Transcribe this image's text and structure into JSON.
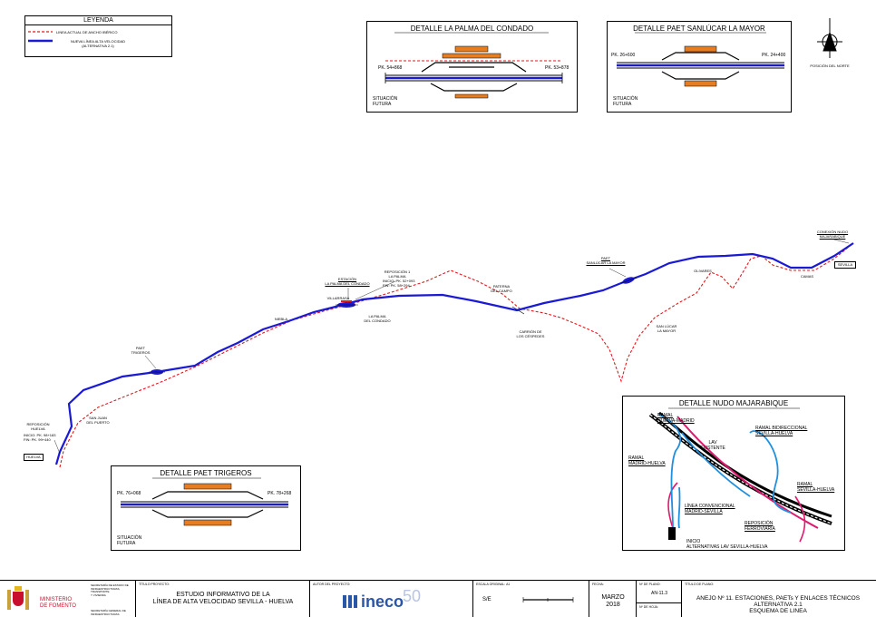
{
  "legend": {
    "title": "LEYENDA",
    "items": [
      {
        "label": "LINEA ACTUAL DE ANCHO IBÉRICO",
        "color": "#e0191e",
        "style": "dashed"
      },
      {
        "label": "NUEVA LÍNEA ALTA VELOCIDAD\n(ALTERNATIVA 2.1)",
        "color": "#1a1ad6",
        "style": "solid"
      }
    ]
  },
  "detail_palma": {
    "title": "DETALLE LA PALMA DEL CONDADO",
    "pk_left": "PK. 54+868",
    "pk_right": "PK. 53+878",
    "situation": "SITUACIÓN\nFUTURA"
  },
  "detail_sanlucar": {
    "title": "DETALLE PAET SANLÚCAR LA MAYOR",
    "pk_left": "PK. 26+600",
    "pk_right": "PK. 24+400",
    "situation": "SITUACIÓN\nFUTURA"
  },
  "north": {
    "label": "POSICIÓN DEL NORTE"
  },
  "detail_trigeros": {
    "title": "DETALLE PAET TRIGEROS",
    "pk_left": "PK. 76+068",
    "pk_right": "PK. 78+268",
    "situation": "SITUACIÓN\nFUTURA"
  },
  "detail_majarabique": {
    "title": "DETALLE NUDO MAJARABIQUE",
    "labels": {
      "ramal_hm": "RAMAL\nHUELVA-MADRID",
      "ramal_bidir": "RAMAL BIDIRECCIONAL\nSEVILLA-HUELVA",
      "lav": "LAV\nEXISTENTE",
      "ramal_mh": "RAMAL\nMADRID-HUELVA",
      "ramal_sh": "RAMAL\nSEVILLA-HUELVA",
      "linea_conv": "LÍNEA CONVENCIONAL\nMADRID-SEVILLA",
      "reposicion": "REPOSICIÓN\nFERROVIARIA",
      "inicio": "INICIO\nALTERNATIVAS LAV SEVILLA-HUELVA"
    }
  },
  "map_labels": {
    "paet_trigeros": "PAET\nTRIGEROS",
    "san_juan": "SAN JUAN\nDEL PUERTO",
    "reposicion_huelva": "REPOSICIÓN\nHUELVA",
    "inicio_fin_huelva": "INICIO: PK. 98+183\nFIN:   PK. 99+440",
    "huelva_box": "HUELVA",
    "niebla": "NIEBLA",
    "villarrasa": "VILLARRASA",
    "estacion_palma": "ESTACIÓN\nLA PALMA DEL CONDADO",
    "reposicion_1": "REPOSICIÓN 1\nLA PALMA",
    "inicio_fin_palma": "INICIO: PK. 52+093\nFIN:   PK. 58+294",
    "la_palma": "LA PALMA\nDEL CONDADO",
    "paterna": "PATERNA\nDEL CAMPO",
    "carrion": "CARRIÓN DE\nLOS CÉSPEDES",
    "paet_sanlucar": "PAET\nSANLÚCAR LA MAYOR",
    "sanlucar_town": "SAN LÚCAR\nLA MAYOR",
    "olivares": "OLIVARES",
    "camas": "CAMAS",
    "sevilla_box": "SEVILLA",
    "conexion": "CONEXIÓN NUDO\nMAJARABIQUE"
  },
  "title_block": {
    "ministerio": "MINISTERIO\nDE FOMENTO",
    "secretaria_estado": "SECRETARÍA DE ESTADO DE\nINFRAESTRUCTURAS, TRANSPORTE\nY VIVIENDA",
    "secretaria_general": "SECRETARÍA GENERAL DE\nINFRAESTRUCTURAS",
    "titulo_proyecto_label": "TÍTULO PROYECTO:",
    "titulo_proyecto": "ESTUDIO INFORMATIVO DE LA\nLÍNEA DE ALTA VELOCIDAD SEVILLA - HUELVA",
    "autor_label": "AUTOR DEL PROYECTO:",
    "logo_text": "ineco",
    "escala_label": "ESCALA ORIGINAL: A1",
    "escala": "S/E",
    "fecha_label": "FECHA:",
    "fecha": "MARZO\n2018",
    "plano_label": "Nº DE PLANO:",
    "plano": "AN-11.3",
    "hoja_label": "Nº DE HOJA:",
    "titulo_plano_label": "TÍTULO DE PLANO:",
    "titulo_plano": "ANEJO Nº 11. ESTACIONES, PAETs Y ENLACES TÉCNICOS\nALTERNATIVA 2.1\nESQUEMA DE LINEA"
  }
}
